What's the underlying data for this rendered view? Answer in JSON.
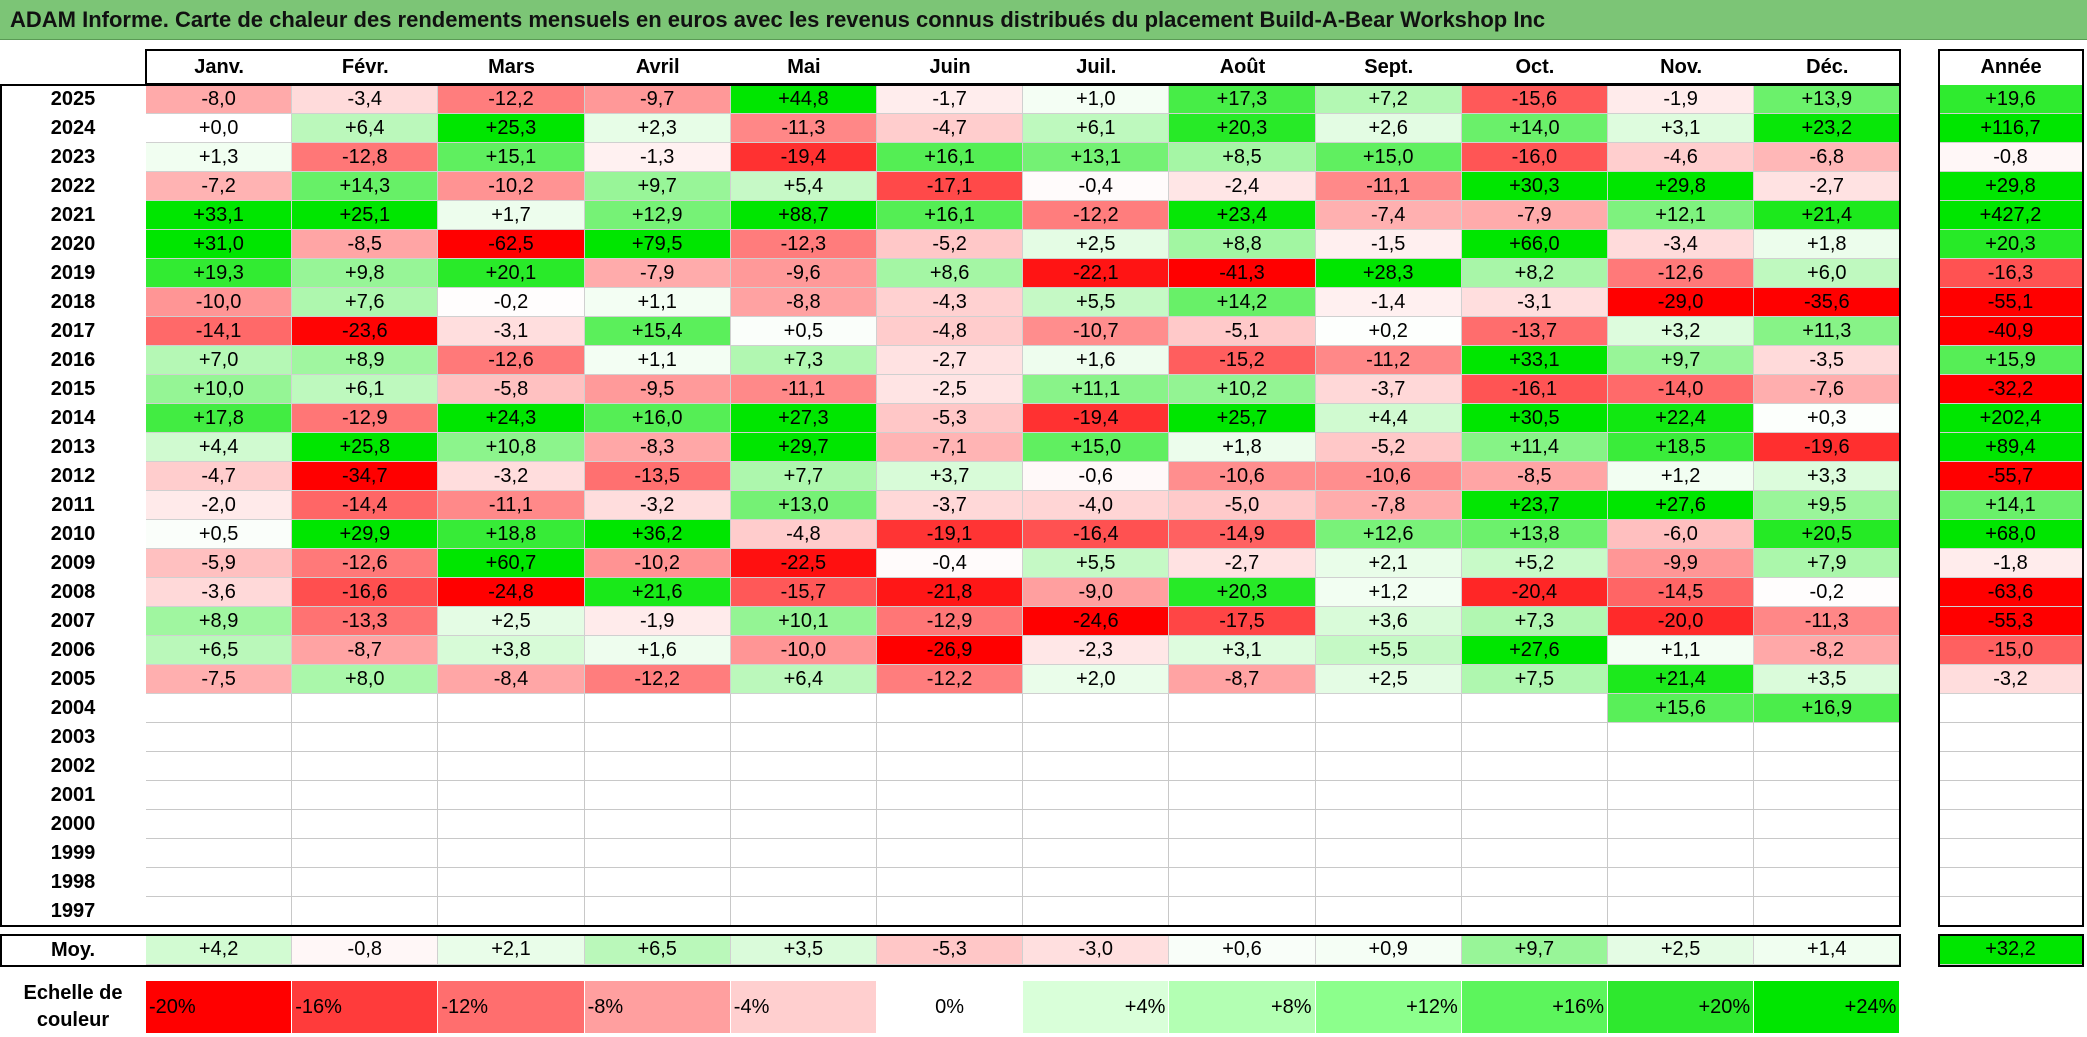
{
  "title": "ADAM Informe. Carte de chaleur des rendements mensuels en euros avec les revenus connus distribués du placement Build-A-Bear Workshop Inc",
  "chart_data": {
    "type": "heatmap",
    "months": [
      "Janv.",
      "Févr.",
      "Mars",
      "Avril",
      "Mai",
      "Juin",
      "Juil.",
      "Août",
      "Sept.",
      "Oct.",
      "Nov.",
      "Déc."
    ],
    "year_header": "Année",
    "rows": [
      {
        "year": "2025",
        "values": [
          "-8,0",
          "-3,4",
          "-12,2",
          "-9,7",
          "+44,8",
          "-1,7",
          "+1,0",
          "+17,3",
          "+7,2",
          "-15,6",
          "-1,9",
          "+13,9"
        ],
        "annual": "+19,6"
      },
      {
        "year": "2024",
        "values": [
          "+0,0",
          "+6,4",
          "+25,3",
          "+2,3",
          "-11,3",
          "-4,7",
          "+6,1",
          "+20,3",
          "+2,6",
          "+14,0",
          "+3,1",
          "+23,2"
        ],
        "annual": "+116,7"
      },
      {
        "year": "2023",
        "values": [
          "+1,3",
          "-12,8",
          "+15,1",
          "-1,3",
          "-19,4",
          "+16,1",
          "+13,1",
          "+8,5",
          "+15,0",
          "-16,0",
          "-4,6",
          "-6,8"
        ],
        "annual": "-0,8"
      },
      {
        "year": "2022",
        "values": [
          "-7,2",
          "+14,3",
          "-10,2",
          "+9,7",
          "+5,4",
          "-17,1",
          "-0,4",
          "-2,4",
          "-11,1",
          "+30,3",
          "+29,8",
          "-2,7"
        ],
        "annual": "+29,8"
      },
      {
        "year": "2021",
        "values": [
          "+33,1",
          "+25,1",
          "+1,7",
          "+12,9",
          "+88,7",
          "+16,1",
          "-12,2",
          "+23,4",
          "-7,4",
          "-7,9",
          "+12,1",
          "+21,4"
        ],
        "annual": "+427,2"
      },
      {
        "year": "2020",
        "values": [
          "+31,0",
          "-8,5",
          "-62,5",
          "+79,5",
          "-12,3",
          "-5,2",
          "+2,5",
          "+8,8",
          "-1,5",
          "+66,0",
          "-3,4",
          "+1,8"
        ],
        "annual": "+20,3"
      },
      {
        "year": "2019",
        "values": [
          "+19,3",
          "+9,8",
          "+20,1",
          "-7,9",
          "-9,6",
          "+8,6",
          "-22,1",
          "-41,3",
          "+28,3",
          "+8,2",
          "-12,6",
          "+6,0"
        ],
        "annual": "-16,3"
      },
      {
        "year": "2018",
        "values": [
          "-10,0",
          "+7,6",
          "-0,2",
          "+1,1",
          "-8,8",
          "-4,3",
          "+5,5",
          "+14,2",
          "-1,4",
          "-3,1",
          "-29,0",
          "-35,6"
        ],
        "annual": "-55,1"
      },
      {
        "year": "2017",
        "values": [
          "-14,1",
          "-23,6",
          "-3,1",
          "+15,4",
          "+0,5",
          "-4,8",
          "-10,7",
          "-5,1",
          "+0,2",
          "-13,7",
          "+3,2",
          "+11,3"
        ],
        "annual": "-40,9"
      },
      {
        "year": "2016",
        "values": [
          "+7,0",
          "+8,9",
          "-12,6",
          "+1,1",
          "+7,3",
          "-2,7",
          "+1,6",
          "-15,2",
          "-11,2",
          "+33,1",
          "+9,7",
          "-3,5"
        ],
        "annual": "+15,9"
      },
      {
        "year": "2015",
        "values": [
          "+10,0",
          "+6,1",
          "-5,8",
          "-9,5",
          "-11,1",
          "-2,5",
          "+11,1",
          "+10,2",
          "-3,7",
          "-16,1",
          "-14,0",
          "-7,6"
        ],
        "annual": "-32,2"
      },
      {
        "year": "2014",
        "values": [
          "+17,8",
          "-12,9",
          "+24,3",
          "+16,0",
          "+27,3",
          "-5,3",
          "-19,4",
          "+25,7",
          "+4,4",
          "+30,5",
          "+22,4",
          "+0,3"
        ],
        "annual": "+202,4"
      },
      {
        "year": "2013",
        "values": [
          "+4,4",
          "+25,8",
          "+10,8",
          "-8,3",
          "+29,7",
          "-7,1",
          "+15,0",
          "+1,8",
          "-5,2",
          "+11,4",
          "+18,5",
          "-19,6"
        ],
        "annual": "+89,4"
      },
      {
        "year": "2012",
        "values": [
          "-4,7",
          "-34,7",
          "-3,2",
          "-13,5",
          "+7,7",
          "+3,7",
          "-0,6",
          "-10,6",
          "-10,6",
          "-8,5",
          "+1,2",
          "+3,3"
        ],
        "annual": "-55,7"
      },
      {
        "year": "2011",
        "values": [
          "-2,0",
          "-14,4",
          "-11,1",
          "-3,2",
          "+13,0",
          "-3,7",
          "-4,0",
          "-5,0",
          "-7,8",
          "+23,7",
          "+27,6",
          "+9,5"
        ],
        "annual": "+14,1"
      },
      {
        "year": "2010",
        "values": [
          "+0,5",
          "+29,9",
          "+18,8",
          "+36,2",
          "-4,8",
          "-19,1",
          "-16,4",
          "-14,9",
          "+12,6",
          "+13,8",
          "-6,0",
          "+20,5"
        ],
        "annual": "+68,0"
      },
      {
        "year": "2009",
        "values": [
          "-5,9",
          "-12,6",
          "+60,7",
          "-10,2",
          "-22,5",
          "-0,4",
          "+5,5",
          "-2,7",
          "+2,1",
          "+5,2",
          "-9,9",
          "+7,9"
        ],
        "annual": "-1,8"
      },
      {
        "year": "2008",
        "values": [
          "-3,6",
          "-16,6",
          "-24,8",
          "+21,6",
          "-15,7",
          "-21,8",
          "-9,0",
          "+20,3",
          "+1,2",
          "-20,4",
          "-14,5",
          "-0,2"
        ],
        "annual": "-63,6"
      },
      {
        "year": "2007",
        "values": [
          "+8,9",
          "-13,3",
          "+2,5",
          "-1,9",
          "+10,1",
          "-12,9",
          "-24,6",
          "-17,5",
          "+3,6",
          "+7,3",
          "-20,0",
          "-11,3"
        ],
        "annual": "-55,3"
      },
      {
        "year": "2006",
        "values": [
          "+6,5",
          "-8,7",
          "+3,8",
          "+1,6",
          "-10,0",
          "-26,9",
          "-2,3",
          "+3,1",
          "+5,5",
          "+27,6",
          "+1,1",
          "-8,2"
        ],
        "annual": "-15,0"
      },
      {
        "year": "2005",
        "values": [
          "-7,5",
          "+8,0",
          "-8,4",
          "-12,2",
          "+6,4",
          "-12,2",
          "+2,0",
          "-8,7",
          "+2,5",
          "+7,5",
          "+21,4",
          "+3,5"
        ],
        "annual": "-3,2"
      },
      {
        "year": "2004",
        "values": [
          "",
          "",
          "",
          "",
          "",
          "",
          "",
          "",
          "",
          "",
          "+15,6",
          "+16,9"
        ],
        "annual": ""
      },
      {
        "year": "2003",
        "values": [
          "",
          "",
          "",
          "",
          "",
          "",
          "",
          "",
          "",
          "",
          "",
          ""
        ],
        "annual": ""
      },
      {
        "year": "2002",
        "values": [
          "",
          "",
          "",
          "",
          "",
          "",
          "",
          "",
          "",
          "",
          "",
          ""
        ],
        "annual": ""
      },
      {
        "year": "2001",
        "values": [
          "",
          "",
          "",
          "",
          "",
          "",
          "",
          "",
          "",
          "",
          "",
          ""
        ],
        "annual": ""
      },
      {
        "year": "2000",
        "values": [
          "",
          "",
          "",
          "",
          "",
          "",
          "",
          "",
          "",
          "",
          "",
          ""
        ],
        "annual": ""
      },
      {
        "year": "1999",
        "values": [
          "",
          "",
          "",
          "",
          "",
          "",
          "",
          "",
          "",
          "",
          "",
          ""
        ],
        "annual": ""
      },
      {
        "year": "1998",
        "values": [
          "",
          "",
          "",
          "",
          "",
          "",
          "",
          "",
          "",
          "",
          "",
          ""
        ],
        "annual": ""
      },
      {
        "year": "1997",
        "values": [
          "",
          "",
          "",
          "",
          "",
          "",
          "",
          "",
          "",
          "",
          "",
          ""
        ],
        "annual": ""
      }
    ],
    "average": {
      "label": "Moy.",
      "values": [
        "+4,2",
        "-0,8",
        "+2,1",
        "+6,5",
        "+3,5",
        "-5,3",
        "-3,0",
        "+0,6",
        "+0,9",
        "+9,7",
        "+2,5",
        "+1,4"
      ],
      "annual": "+32,2"
    },
    "color_scale": {
      "label_line1": "Echelle de",
      "label_line2": "couleur",
      "steps": [
        {
          "label": "-20%",
          "value": -20,
          "color": "#ff0000"
        },
        {
          "label": "-16%",
          "value": -16,
          "color": "#ff3b3b"
        },
        {
          "label": "-12%",
          "value": -12,
          "color": "#ff6e6e"
        },
        {
          "label": "-8%",
          "value": -8,
          "color": "#ff9f9f"
        },
        {
          "label": "-4%",
          "value": -4,
          "color": "#ffcfcf"
        },
        {
          "label": "0%",
          "value": 0,
          "color": "#ffffff"
        },
        {
          "label": "+4%",
          "value": 4,
          "color": "#d9ffd9"
        },
        {
          "label": "+8%",
          "value": 8,
          "color": "#b3ffb3"
        },
        {
          "label": "+12%",
          "value": 12,
          "color": "#8cff8c"
        },
        {
          "label": "+16%",
          "value": 16,
          "color": "#5cf55c"
        },
        {
          "label": "+20%",
          "value": 20,
          "color": "#2ee82e"
        },
        {
          "label": "+24%",
          "value": 24,
          "color": "#00e600"
        }
      ]
    }
  }
}
